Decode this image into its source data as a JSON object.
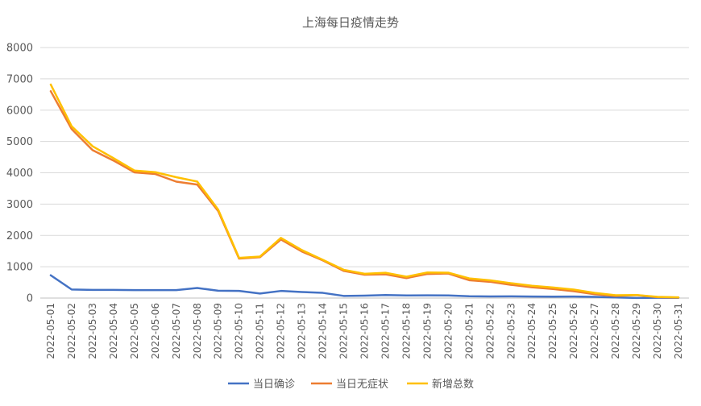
{
  "chart_data": {
    "type": "line",
    "title": "上海每日疫情走势",
    "xlabel": "",
    "ylabel": "",
    "ylim": [
      0,
      8000
    ],
    "yticks": [
      0,
      1000,
      2000,
      3000,
      4000,
      5000,
      6000,
      7000,
      8000
    ],
    "grid": true,
    "legend_position": "bottom",
    "x": [
      "2022-05-01",
      "2022-05-02",
      "2022-05-03",
      "2022-05-04",
      "2022-05-05",
      "2022-05-06",
      "2022-05-07",
      "2022-05-08",
      "2022-05-09",
      "2022-05-10",
      "2022-05-11",
      "2022-05-12",
      "2022-05-13",
      "2022-05-14",
      "2022-05-15",
      "2022-05-16",
      "2022-05-17",
      "2022-05-18",
      "2022-05-19",
      "2022-05-20",
      "2022-05-21",
      "2022-05-22",
      "2022-05-23",
      "2022-05-24",
      "2022-05-25",
      "2022-05-26",
      "2022-05-27",
      "2022-05-28",
      "2022-05-29",
      "2022-05-30",
      "2022-05-31"
    ],
    "series": [
      {
        "name": "当日确诊",
        "color": "#4472C4",
        "values": [
          727,
          274,
          260,
          261,
          253,
          254,
          255,
          322,
          234,
          228,
          144,
          227,
          194,
          166,
          69,
          77,
          96,
          82,
          88,
          84,
          58,
          53,
          55,
          48,
          45,
          48,
          39,
          20,
          3,
          10,
          7
        ]
      },
      {
        "name": "当日无症状",
        "color": "#ED7D31",
        "values": [
          6606,
          5395,
          4722,
          4390,
          4014,
          3961,
          3717,
          3625,
          2780,
          1259,
          1305,
          1869,
          1487,
          1203,
          869,
          746,
          759,
          637,
          770,
          784,
          570,
          519,
          422,
          343,
          290,
          219,
          122,
          67,
          93,
          29,
          15
        ]
      },
      {
        "name": "新增总数",
        "color": "#FFC000",
        "values": [
          6818,
          5484,
          4847,
          4466,
          4072,
          4019,
          3858,
          3720,
          2827,
          1282,
          1325,
          1921,
          1532,
          1223,
          902,
          776,
          807,
          681,
          816,
          811,
          628,
          566,
          474,
          392,
          338,
          269,
          163,
          90,
          98,
          39,
          22
        ]
      }
    ]
  }
}
